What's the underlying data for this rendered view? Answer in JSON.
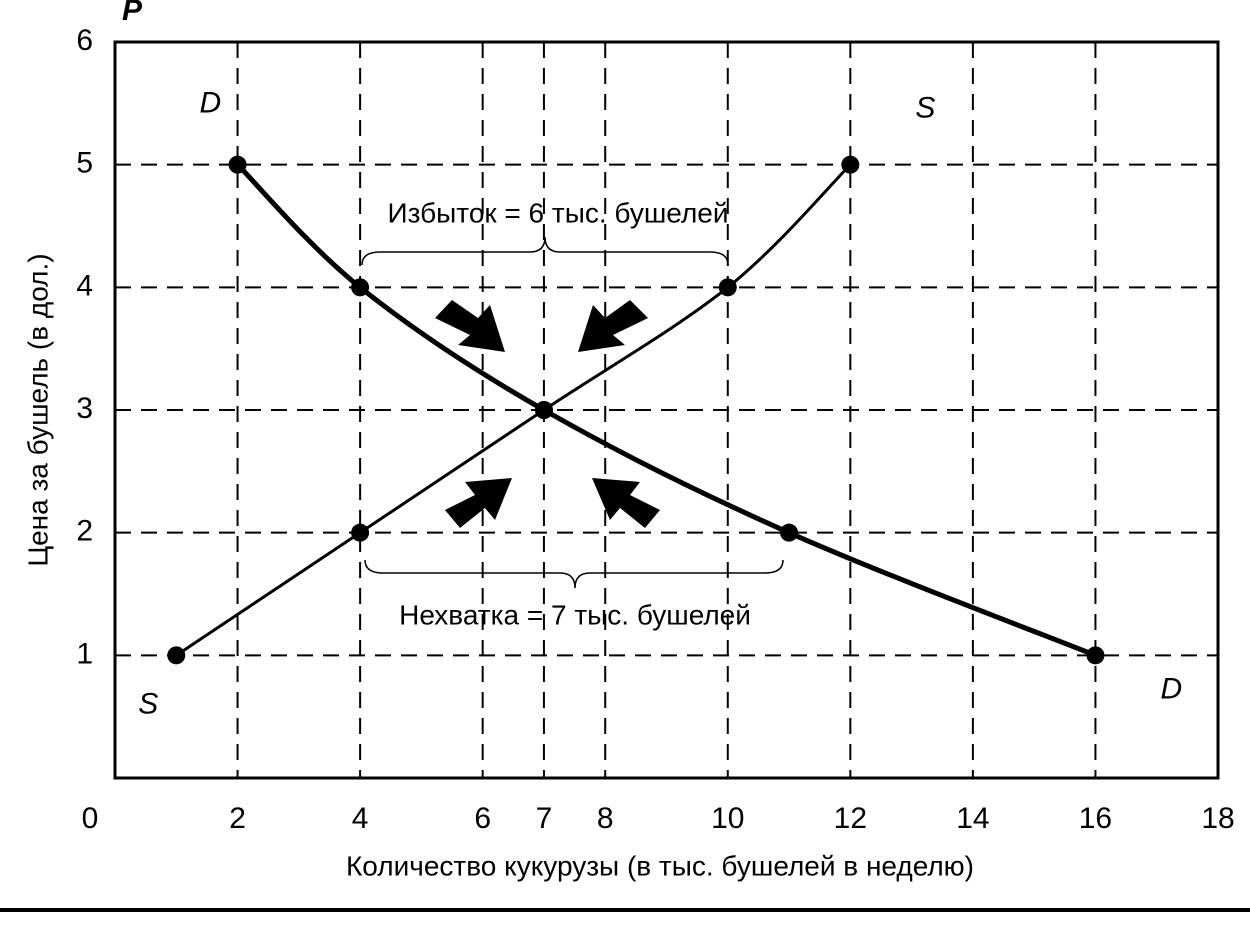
{
  "chart_data": {
    "type": "line",
    "y_label": "Цена за бушель (в дол.)",
    "x_label": "Количество кукурузы (в тыс. бушелей в неделю)",
    "y_axis_letter": "P",
    "xlim": [
      0,
      18
    ],
    "ylim": [
      0,
      6
    ],
    "xticks": [
      0,
      2,
      4,
      6,
      7,
      8,
      10,
      12,
      14,
      16,
      18
    ],
    "yticks": [
      1,
      2,
      3,
      4,
      5,
      6
    ],
    "grid": true,
    "series": [
      {
        "name": "S",
        "color": "#000000",
        "x": [
          1,
          4,
          7,
          10,
          12
        ],
        "values": [
          1,
          2,
          3,
          4,
          5
        ]
      },
      {
        "name": "D",
        "color": "#000000",
        "x": [
          2,
          4,
          7,
          11,
          16
        ],
        "values": [
          5,
          4,
          3,
          2,
          1
        ]
      }
    ],
    "annotations": [
      "Избыток = 6 тыс. бушелей",
      "Нехватка = 7 тыс. бушелей"
    ]
  }
}
